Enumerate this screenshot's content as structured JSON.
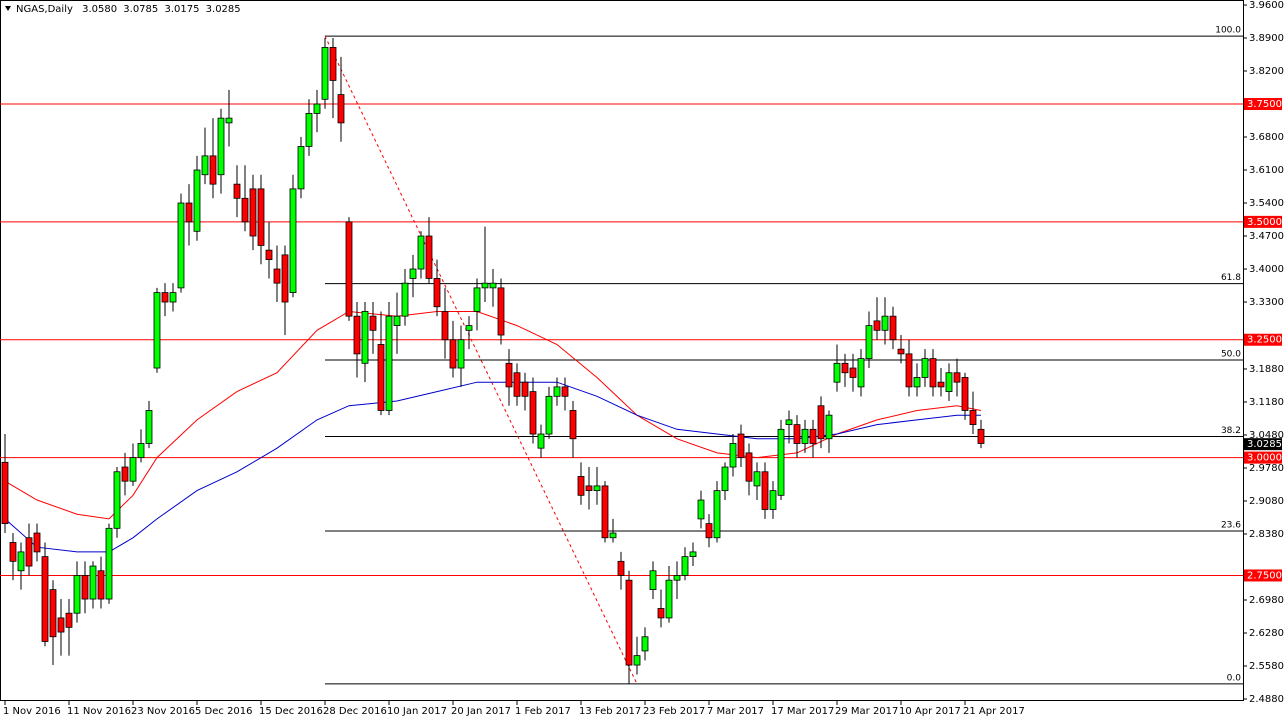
{
  "chart_data": {
    "type": "candlestick",
    "header": {
      "symbol": "NGAS,Daily",
      "ohlc": [
        "3.0580",
        "3.0785",
        "3.0175",
        "3.0285"
      ]
    },
    "xlim": [
      -0.625,
      154.75
    ],
    "ylim": [
      2.488,
      3.96
    ],
    "yticks": [
      {
        "value": 3.96,
        "label": "3.9600"
      },
      {
        "value": 3.89,
        "label": "3.8900"
      },
      {
        "value": 3.82,
        "label": "3.8200"
      },
      {
        "value": 3.68,
        "label": "3.6800"
      },
      {
        "value": 3.61,
        "label": "3.6100"
      },
      {
        "value": 3.54,
        "label": "3.5400"
      },
      {
        "value": 3.47,
        "label": "3.4700"
      },
      {
        "value": 3.4,
        "label": "3.4000"
      },
      {
        "value": 3.33,
        "label": "3.3300"
      },
      {
        "value": 3.188,
        "label": "3.1880"
      },
      {
        "value": 3.118,
        "label": "3.1180"
      },
      {
        "value": 3.048,
        "label": "3.0480"
      },
      {
        "value": 2.978,
        "label": "2.9780"
      },
      {
        "value": 2.908,
        "label": "2.9080"
      },
      {
        "value": 2.838,
        "label": "2.8380"
      },
      {
        "value": 2.698,
        "label": "2.6980"
      },
      {
        "value": 2.628,
        "label": "2.6280"
      },
      {
        "value": 2.558,
        "label": "2.5580"
      },
      {
        "value": 2.488,
        "label": "2.4880"
      }
    ],
    "xticks": [
      {
        "value": 0,
        "label": "1 Nov 2016"
      },
      {
        "value": 8,
        "label": "11 Nov 2016"
      },
      {
        "value": 16,
        "label": "23 Nov 2016"
      },
      {
        "value": 24,
        "label": "5 Dec 2016"
      },
      {
        "value": 32,
        "label": "15 Dec 2016"
      },
      {
        "value": 40,
        "label": "28 Dec 2016"
      },
      {
        "value": 48,
        "label": "10 Jan 2017"
      },
      {
        "value": 56,
        "label": "20 Jan 2017"
      },
      {
        "value": 64,
        "label": "1 Feb 2017"
      },
      {
        "value": 72,
        "label": "13 Feb 2017"
      },
      {
        "value": 80,
        "label": "23 Feb 2017"
      },
      {
        "value": 88,
        "label": "7 Mar 2017"
      },
      {
        "value": 96,
        "label": "17 Mar 2017"
      },
      {
        "value": 104,
        "label": "29 Mar 2017"
      },
      {
        "value": 112,
        "label": "10 Apr 2017"
      },
      {
        "value": 120,
        "label": "21 Apr 2017"
      }
    ],
    "colors": {
      "up": "#00ff00",
      "down": "#ff0000",
      "wick": "#000000"
    },
    "candles": {
      "open": [
        2.99,
        2.82,
        2.76,
        2.83,
        2.84,
        2.79,
        2.72,
        2.66,
        2.67,
        2.67,
        2.75,
        2.7,
        2.76,
        2.7,
        2.85,
        2.98,
        2.95,
        3.0,
        3.03,
        3.19,
        3.35,
        3.33,
        3.36,
        3.54,
        3.48,
        3.6,
        3.64,
        3.6,
        3.71,
        3.58,
        3.55,
        3.57,
        3.57,
        3.44,
        3.4,
        3.43,
        3.35,
        3.57,
        3.66,
        3.73,
        3.76,
        3.87,
        3.77,
        3.5,
        3.3,
        3.2,
        3.3,
        3.24,
        3.1,
        3.28,
        3.3,
        3.38,
        3.4,
        3.47,
        3.38,
        3.31,
        3.25,
        3.19,
        3.27,
        3.31,
        3.36,
        3.36,
        3.36,
        3.2,
        3.18,
        3.16,
        3.14,
        3.02,
        3.05,
        3.13,
        3.15,
        3.1,
        2.96,
        2.94,
        2.93,
        2.94,
        2.83,
        2.78,
        2.74,
        2.56,
        2.59,
        2.72,
        2.68,
        2.66,
        2.74,
        2.75,
        2.79,
        2.87,
        2.86,
        2.83,
        2.93,
        2.98,
        3.05,
        3.01,
        2.94,
        2.97,
        2.89,
        2.92,
        3.07,
        3.07,
        3.03,
        3.06,
        3.11,
        3.04,
        3.16,
        3.2,
        3.19,
        3.15,
        3.21,
        3.29,
        3.27,
        3.3,
        3.23,
        3.22,
        3.15,
        3.17,
        3.21,
        3.16,
        3.14,
        3.18,
        3.17,
        3.1,
        3.06
      ],
      "high": [
        3.05,
        2.84,
        2.82,
        2.86,
        2.86,
        2.82,
        2.74,
        2.7,
        2.7,
        2.78,
        2.78,
        2.78,
        2.79,
        2.86,
        2.98,
        3.01,
        3.03,
        3.06,
        3.12,
        3.36,
        3.37,
        3.37,
        3.56,
        3.58,
        3.64,
        3.7,
        3.72,
        3.74,
        3.78,
        3.62,
        3.62,
        3.6,
        3.6,
        3.5,
        3.45,
        3.45,
        3.6,
        3.68,
        3.76,
        3.78,
        3.89,
        3.89,
        3.85,
        3.51,
        3.33,
        3.33,
        3.33,
        3.31,
        3.33,
        3.35,
        3.4,
        3.43,
        3.48,
        3.51,
        3.42,
        3.36,
        3.29,
        3.28,
        3.3,
        3.38,
        3.49,
        3.4,
        3.38,
        3.23,
        3.2,
        3.18,
        3.17,
        3.07,
        3.15,
        3.17,
        3.17,
        3.12,
        2.99,
        2.98,
        2.98,
        2.95,
        2.87,
        2.8,
        2.76,
        2.62,
        2.64,
        2.78,
        2.72,
        2.77,
        2.78,
        2.81,
        2.82,
        2.93,
        2.88,
        2.95,
        2.99,
        3.05,
        3.07,
        3.03,
        2.99,
        2.99,
        2.95,
        3.08,
        3.1,
        3.09,
        3.08,
        3.08,
        3.13,
        3.1,
        3.24,
        3.22,
        3.22,
        3.23,
        3.31,
        3.34,
        3.34,
        3.32,
        3.26,
        3.25,
        3.2,
        3.23,
        3.23,
        3.19,
        3.2,
        3.21,
        3.18,
        3.14,
        3.08
      ],
      "low": [
        2.84,
        2.74,
        2.72,
        2.75,
        2.78,
        2.6,
        2.56,
        2.58,
        2.58,
        2.65,
        2.67,
        2.68,
        2.68,
        2.69,
        2.83,
        2.92,
        2.94,
        2.99,
        3.02,
        3.18,
        3.3,
        3.31,
        3.35,
        3.45,
        3.46,
        3.58,
        3.55,
        3.56,
        3.66,
        3.51,
        3.48,
        3.44,
        3.41,
        3.38,
        3.33,
        3.26,
        3.34,
        3.55,
        3.64,
        3.69,
        3.74,
        3.72,
        3.67,
        3.29,
        3.17,
        3.16,
        3.22,
        3.09,
        3.09,
        3.22,
        3.28,
        3.34,
        3.38,
        3.37,
        3.3,
        3.21,
        3.17,
        3.15,
        3.23,
        3.27,
        3.33,
        3.32,
        3.24,
        3.11,
        3.11,
        3.1,
        3.03,
        3.0,
        3.04,
        3.11,
        3.1,
        3.0,
        2.9,
        2.89,
        2.9,
        2.82,
        2.82,
        2.72,
        2.52,
        2.54,
        2.57,
        2.7,
        2.64,
        2.65,
        2.7,
        2.74,
        2.77,
        2.85,
        2.81,
        2.82,
        2.91,
        2.96,
        2.98,
        2.92,
        2.91,
        2.87,
        2.87,
        2.91,
        3.03,
        3.0,
        3.01,
        3.0,
        3.02,
        3.01,
        3.14,
        3.15,
        3.14,
        3.13,
        3.19,
        3.25,
        3.24,
        3.23,
        3.2,
        3.13,
        3.13,
        3.15,
        3.13,
        3.13,
        3.12,
        3.13,
        3.08,
        3.05,
        3.02
      ],
      "close": [
        2.86,
        2.78,
        2.8,
        2.77,
        2.8,
        2.61,
        2.62,
        2.63,
        2.64,
        2.75,
        2.7,
        2.77,
        2.7,
        2.85,
        2.97,
        2.95,
        3.0,
        3.03,
        3.1,
        3.35,
        3.33,
        3.35,
        3.54,
        3.5,
        3.61,
        3.64,
        3.58,
        3.72,
        3.72,
        3.55,
        3.5,
        3.47,
        3.45,
        3.42,
        3.37,
        3.33,
        3.57,
        3.66,
        3.73,
        3.75,
        3.87,
        3.8,
        3.71,
        3.3,
        3.22,
        3.31,
        3.27,
        3.1,
        3.3,
        3.3,
        3.37,
        3.4,
        3.47,
        3.38,
        3.32,
        3.25,
        3.19,
        3.25,
        3.28,
        3.36,
        3.37,
        3.37,
        3.26,
        3.15,
        3.13,
        3.13,
        3.05,
        3.05,
        3.13,
        3.15,
        3.13,
        3.04,
        2.92,
        2.93,
        2.94,
        2.83,
        2.84,
        2.75,
        2.56,
        2.58,
        2.62,
        2.76,
        2.66,
        2.74,
        2.75,
        2.79,
        2.8,
        2.91,
        2.83,
        2.93,
        2.98,
        3.03,
        3.0,
        2.95,
        2.97,
        2.89,
        2.93,
        3.06,
        3.08,
        3.03,
        3.06,
        3.03,
        3.04,
        3.09,
        3.2,
        3.18,
        3.17,
        3.21,
        3.28,
        3.27,
        3.3,
        3.25,
        3.22,
        3.15,
        3.17,
        3.21,
        3.15,
        3.15,
        3.18,
        3.16,
        3.1,
        3.07,
        3.03
      ]
    },
    "moving_averages": [
      {
        "color": "#ff0000",
        "x": [
          0,
          4,
          9,
          13,
          16,
          19,
          24,
          29,
          34,
          39,
          43,
          49,
          54,
          59,
          64,
          69,
          74,
          79,
          84,
          89,
          94,
          99,
          104,
          109,
          114,
          119,
          122
        ],
        "values": [
          2.95,
          2.91,
          2.88,
          2.87,
          2.92,
          3.0,
          3.08,
          3.14,
          3.18,
          3.27,
          3.31,
          3.3,
          3.31,
          3.31,
          3.28,
          3.24,
          3.17,
          3.09,
          3.04,
          3.01,
          3.0,
          3.01,
          3.05,
          3.08,
          3.1,
          3.11,
          3.1
        ]
      },
      {
        "color": "#0000cc",
        "x": [
          0,
          4,
          9,
          13,
          16,
          19,
          24,
          29,
          34,
          39,
          43,
          49,
          54,
          59,
          64,
          69,
          74,
          79,
          84,
          89,
          94,
          99,
          104,
          109,
          114,
          119,
          122
        ],
        "values": [
          2.87,
          2.81,
          2.8,
          2.8,
          2.83,
          2.87,
          2.93,
          2.97,
          3.02,
          3.08,
          3.11,
          3.12,
          3.14,
          3.16,
          3.16,
          3.16,
          3.13,
          3.09,
          3.06,
          3.05,
          3.04,
          3.04,
          3.05,
          3.07,
          3.08,
          3.09,
          3.09
        ]
      }
    ],
    "levels": [
      {
        "value": 3.75,
        "label": "3.7500"
      },
      {
        "value": 3.5,
        "label": "3.5000"
      },
      {
        "value": 3.25,
        "label": "3.2500"
      },
      {
        "value": 3.0,
        "label": "3.0000"
      },
      {
        "value": 2.75,
        "label": "2.7500"
      }
    ],
    "level_color": "#ff0000",
    "trendline": {
      "x": [
        40,
        79
      ],
      "y": [
        3.894,
        2.52
      ],
      "color": "#ff0000"
    },
    "fib_levels": [
      {
        "value": 100,
        "label": "100.0"
      },
      {
        "value": 61.8,
        "label": "61.8"
      },
      {
        "value": 50,
        "label": "50.0"
      },
      {
        "value": 38.2,
        "label": "38.2"
      },
      {
        "value": 23.6,
        "label": "23.6"
      },
      {
        "value": 0,
        "label": "0.0"
      }
    ],
    "last_price": {
      "value": 3.0285,
      "label": "3.0285"
    }
  }
}
